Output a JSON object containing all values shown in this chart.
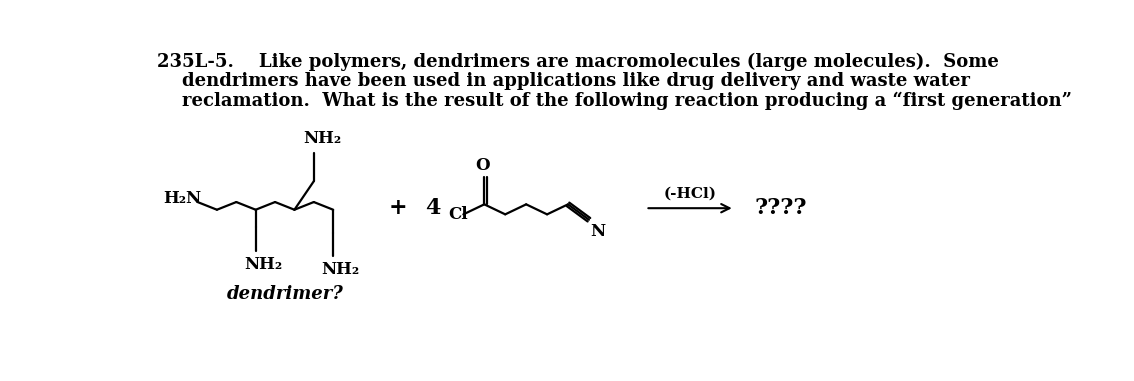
{
  "background_color": "#ffffff",
  "text_color": "#000000",
  "title_line1": "235L-5.    Like polymers, dendrimers are macromolecules (large molecules).  Some",
  "title_line2": "    dendrimers have been used in applications like drug delivery and waste water",
  "title_line3": "    reclamation.  What is the result of the following reaction producing a “first generation”",
  "label_plus": "+",
  "label_4": "4",
  "label_hcl": "(-HCl)",
  "label_question": "????",
  "label_dendrimer": "dendrimer?",
  "label_nh2_top": "NH₂",
  "label_nh2_right": "NH₂",
  "label_nh2_bottom": "NH₂",
  "label_h2n": "H₂N",
  "label_o": "O",
  "label_cl": "Cl",
  "label_n": "N",
  "font_size_text": 13,
  "font_size_chem": 12,
  "font_size_small": 11
}
